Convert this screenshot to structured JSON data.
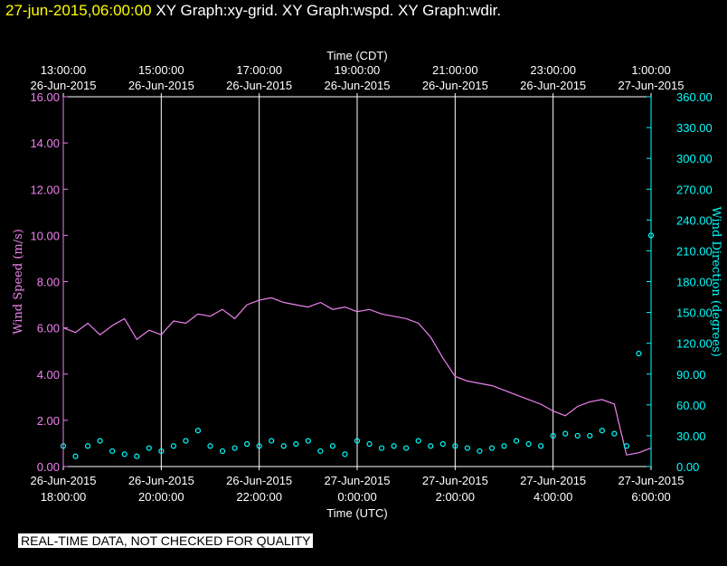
{
  "header": {
    "time": "27-jun-2015,06:00:00",
    "graphs": "XY Graph:xy-grid.  XY Graph:wspd.  XY Graph:wdir."
  },
  "footer_note": "REAL-TIME DATA, NOT CHECKED FOR QUALITY",
  "colors": {
    "speed": "#ee82ee",
    "direction": "#00ffff",
    "grid": "#ffffff",
    "background": "#000000"
  },
  "chart_data": {
    "type": "line",
    "top_axis": {
      "title": "Time (CDT)",
      "ticks": [
        {
          "t": 0,
          "line1": "13:00:00",
          "line2": "26-Jun-2015"
        },
        {
          "t": 2,
          "line1": "15:00:00",
          "line2": "26-Jun-2015"
        },
        {
          "t": 4,
          "line1": "17:00:00",
          "line2": "26-Jun-2015"
        },
        {
          "t": 6,
          "line1": "19:00:00",
          "line2": "26-Jun-2015"
        },
        {
          "t": 8,
          "line1": "21:00:00",
          "line2": "26-Jun-2015"
        },
        {
          "t": 10,
          "line1": "23:00:00",
          "line2": "26-Jun-2015"
        },
        {
          "t": 12,
          "line1": "1:00:00",
          "line2": "27-Jun-2015"
        }
      ]
    },
    "bottom_axis": {
      "title": "Time (UTC)",
      "ticks": [
        {
          "t": 0,
          "line1": "26-Jun-2015",
          "line2": "18:00:00"
        },
        {
          "t": 2,
          "line1": "26-Jun-2015",
          "line2": "20:00:00"
        },
        {
          "t": 4,
          "line1": "26-Jun-2015",
          "line2": "22:00:00"
        },
        {
          "t": 6,
          "line1": "27-Jun-2015",
          "line2": "0:00:00"
        },
        {
          "t": 8,
          "line1": "27-Jun-2015",
          "line2": "2:00:00"
        },
        {
          "t": 10,
          "line1": "27-Jun-2015",
          "line2": "4:00:00"
        },
        {
          "t": 12,
          "line1": "27-Jun-2015",
          "line2": "6:00:00"
        }
      ]
    },
    "x_range": [
      0,
      12
    ],
    "left_axis": {
      "title": "Wind Speed (m/s)",
      "range": [
        0,
        16
      ],
      "ticks": [
        "0.00",
        "2.00",
        "4.00",
        "6.00",
        "8.00",
        "10.00",
        "12.00",
        "14.00",
        "16.00"
      ]
    },
    "right_axis": {
      "title": "Wind Direction (degrees)",
      "range": [
        0,
        360
      ],
      "ticks": [
        "0.00",
        "30.00",
        "60.00",
        "90.00",
        "120.00",
        "150.00",
        "180.00",
        "210.00",
        "240.00",
        "270.00",
        "300.00",
        "330.00",
        "360.00"
      ]
    },
    "grid": "vertical lines at each time tick",
    "series": [
      {
        "name": "Wind Speed",
        "axis": "left",
        "style": "line",
        "x": [
          0.0,
          0.25,
          0.5,
          0.75,
          1.0,
          1.25,
          1.5,
          1.75,
          2.0,
          2.25,
          2.5,
          2.75,
          3.0,
          3.25,
          3.5,
          3.75,
          4.0,
          4.25,
          4.5,
          4.75,
          5.0,
          5.25,
          5.5,
          5.75,
          6.0,
          6.25,
          6.5,
          6.75,
          7.0,
          7.25,
          7.5,
          7.75,
          8.0,
          8.25,
          8.5,
          8.75,
          9.0,
          9.25,
          9.5,
          9.75,
          10.0,
          10.25,
          10.5,
          10.75,
          11.0,
          11.25,
          11.5,
          11.75,
          12.0
        ],
        "y": [
          6.0,
          5.8,
          6.2,
          5.7,
          6.1,
          6.4,
          5.5,
          5.9,
          5.7,
          6.3,
          6.2,
          6.6,
          6.5,
          6.8,
          6.4,
          7.0,
          7.2,
          7.3,
          7.1,
          7.0,
          6.9,
          7.1,
          6.8,
          6.9,
          6.7,
          6.8,
          6.6,
          6.5,
          6.4,
          6.2,
          5.6,
          4.7,
          3.9,
          3.7,
          3.6,
          3.5,
          3.3,
          3.1,
          2.9,
          2.7,
          2.4,
          2.2,
          2.6,
          2.8,
          2.9,
          2.7,
          0.5,
          0.6,
          0.8
        ]
      },
      {
        "name": "Wind Direction",
        "axis": "right",
        "style": "scatter",
        "x": [
          0.0,
          0.25,
          0.5,
          0.75,
          1.0,
          1.25,
          1.5,
          1.75,
          2.0,
          2.25,
          2.5,
          2.75,
          3.0,
          3.25,
          3.5,
          3.75,
          4.0,
          4.25,
          4.5,
          4.75,
          5.0,
          5.25,
          5.5,
          5.75,
          6.0,
          6.25,
          6.5,
          6.75,
          7.0,
          7.25,
          7.5,
          7.75,
          8.0,
          8.25,
          8.5,
          8.75,
          9.0,
          9.25,
          9.5,
          9.75,
          10.0,
          10.25,
          10.5,
          10.75,
          11.0,
          11.25,
          11.5,
          11.75,
          12.0
        ],
        "y": [
          20,
          10,
          20,
          25,
          15,
          12,
          10,
          18,
          15,
          20,
          25,
          35,
          20,
          15,
          18,
          22,
          20,
          25,
          20,
          22,
          25,
          15,
          20,
          12,
          25,
          22,
          18,
          20,
          18,
          25,
          20,
          22,
          20,
          18,
          15,
          18,
          20,
          25,
          22,
          20,
          30,
          32,
          30,
          30,
          35,
          32,
          20,
          110,
          225
        ]
      }
    ]
  }
}
